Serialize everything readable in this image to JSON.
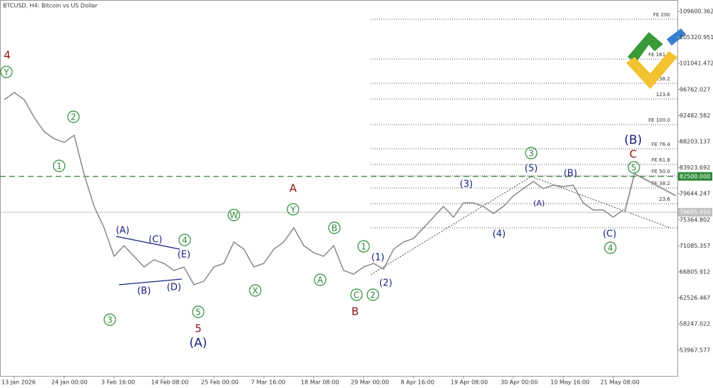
{
  "chart_data": {
    "type": "line",
    "title": "BTCUSD, H4:  Bitcoin vs US Dollar",
    "ylim": [
      49732,
      111470
    ],
    "yticks": [
      109600.362,
      105320.951,
      101041.472,
      96762.027,
      92482.582,
      88203.137,
      83923.692,
      79644.247,
      75364.802,
      71085.357,
      66805.912,
      62526.467,
      58247.022,
      53967.577
    ],
    "categories": [
      null,
      "13 Jan 2026",
      null,
      null,
      null,
      null,
      "24 Jan 00:00",
      null,
      null,
      null,
      null,
      "3 Feb 16:00",
      null,
      null,
      null,
      null,
      "14 Feb 08:00",
      null,
      null,
      null,
      null,
      "25 Feb 00:00",
      null,
      null,
      null,
      null,
      "7 Mar 16:00",
      null,
      null,
      null,
      null,
      "18 Mar 08:00",
      null,
      null,
      null,
      null,
      "29 Mar 00:00",
      null,
      null,
      null,
      null,
      "8 Apr 16:00",
      null,
      null,
      null,
      null,
      "19 Apr 08:00",
      null,
      null,
      null,
      null,
      "30 Apr 00:00",
      null,
      null,
      null,
      null,
      "10 May 16:00",
      null,
      null,
      null,
      null,
      "21 May 08:00",
      null
    ],
    "series": [
      {
        "color": "#808080",
        "values": [
          95101,
          96270,
          95101,
          92178,
          89840,
          88671,
          88086,
          89255,
          82825,
          77563,
          74056,
          69379,
          71133,
          69379,
          67625,
          68794,
          68210,
          67040,
          67625,
          64702,
          65287,
          67625,
          68210,
          71717,
          70548,
          67625,
          68210,
          70548,
          71717,
          74056,
          71133,
          69963,
          69379,
          71133,
          67040,
          66456,
          67625,
          68210,
          67275,
          70548,
          71717,
          72302,
          74056,
          75809,
          77563,
          75809,
          78148,
          78148,
          77563,
          76394,
          77563,
          79317,
          80486,
          81655,
          80486,
          81071,
          80837,
          81071,
          78148,
          76979,
          76979,
          75809,
          76979
        ]
      }
    ],
    "current_price": {
      "value": 76605.95,
      "label": "76605.950",
      "color": "#c0c0c0"
    },
    "level": {
      "value": 82500,
      "label": "82500.000",
      "color": "#2e8b3a"
    },
    "fib_levels": [
      {
        "value": 108313,
        "label": "FE 200"
      },
      {
        "value": 101766,
        "label": "FE 161.8"
      },
      {
        "value": 97790,
        "label": "138.2"
      },
      {
        "value": 95218,
        "label": "123.6"
      },
      {
        "value": 91009,
        "label": "FE 100.0"
      },
      {
        "value": 87034,
        "label": "FE 76.4"
      },
      {
        "value": 84461,
        "label": "FE 61.8"
      },
      {
        "value": 82590,
        "label": "FE 50.0"
      },
      {
        "value": 80603,
        "label": "FE 38.2"
      },
      {
        "value": 78031,
        "label": "23.6"
      },
      {
        "value": 74056,
        "label": null
      }
    ],
    "wave_labels": [
      {
        "text": "4",
        "style": "red"
      },
      {
        "text": "Y",
        "style": "circle"
      },
      {
        "text": "2",
        "style": "circle"
      },
      {
        "text": "1",
        "style": "circle"
      },
      {
        "text": "3",
        "style": "circle"
      },
      {
        "text": "(A)",
        "style": "navy"
      },
      {
        "text": "(C)",
        "style": "navy"
      },
      {
        "text": "4",
        "style": "circle"
      },
      {
        "text": "(E)",
        "style": "navy"
      },
      {
        "text": "(B)",
        "style": "navy"
      },
      {
        "text": "(D)",
        "style": "navy"
      },
      {
        "text": "5",
        "style": "circle"
      },
      {
        "text": "5",
        "style": "red"
      },
      {
        "text": "(A)",
        "style": "navy-large"
      },
      {
        "text": "W",
        "style": "circle"
      },
      {
        "text": "X",
        "style": "circle"
      },
      {
        "text": "A",
        "style": "red"
      },
      {
        "text": "Y",
        "style": "circle"
      },
      {
        "text": "A",
        "style": "circle"
      },
      {
        "text": "B",
        "style": "circle"
      },
      {
        "text": "C",
        "style": "circle"
      },
      {
        "text": "B",
        "style": "red"
      },
      {
        "text": "1",
        "style": "circle"
      },
      {
        "text": "(1)",
        "style": "navy"
      },
      {
        "text": "2",
        "style": "circle"
      },
      {
        "text": "(2)",
        "style": "navy"
      },
      {
        "text": "(3)",
        "style": "navy"
      },
      {
        "text": "(4)",
        "style": "navy"
      },
      {
        "text": "3",
        "style": "circle"
      },
      {
        "text": "(5)",
        "style": "navy"
      },
      {
        "text": "(A)",
        "style": "navy-small"
      },
      {
        "text": "(B)",
        "style": "navy"
      },
      {
        "text": "(C)",
        "style": "navy"
      },
      {
        "text": "4",
        "style": "circle"
      },
      {
        "text": "(B)",
        "style": "navy-large"
      },
      {
        "text": "C",
        "style": "red"
      },
      {
        "text": "5",
        "style": "circle"
      }
    ]
  }
}
